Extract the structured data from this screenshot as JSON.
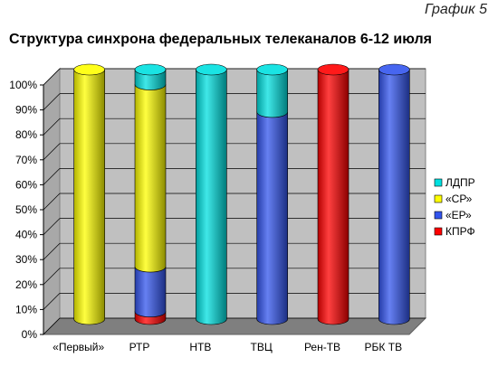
{
  "page": {
    "corner_label": "График 5",
    "title": "Структура синхрона федеральных телеканалов 6-12 июля"
  },
  "chart_data": {
    "type": "bar",
    "stacked": true,
    "percent": true,
    "title": "Структура синхрона федеральных телеканалов 6-12 июля",
    "categories": [
      "«Первый»",
      "РТР",
      "НТВ",
      "ТВЦ",
      "Рен-ТВ",
      "РБК ТВ"
    ],
    "series": [
      {
        "name": "КПРФ",
        "color": "#ff0000",
        "values": [
          0,
          3,
          0,
          0,
          100,
          0
        ]
      },
      {
        "name": "«ЕР»",
        "color": "#3355ee",
        "values": [
          0,
          18,
          0,
          83,
          0,
          100
        ]
      },
      {
        "name": "«СР»",
        "color": "#ffff00",
        "values": [
          100,
          73,
          0,
          0,
          0,
          0
        ]
      },
      {
        "name": "ЛДПР",
        "color": "#00e0e0",
        "values": [
          0,
          6,
          100,
          17,
          0,
          0
        ]
      }
    ],
    "y_ticks": [
      "0%",
      "10%",
      "20%",
      "30%",
      "40%",
      "50%",
      "60%",
      "70%",
      "80%",
      "90%",
      "100%"
    ],
    "ylim": [
      0,
      100
    ],
    "grid": true,
    "legend_position": "right",
    "legend_order": [
      "ЛДПР",
      "«СР»",
      "«ЕР»",
      "КПРФ"
    ]
  }
}
